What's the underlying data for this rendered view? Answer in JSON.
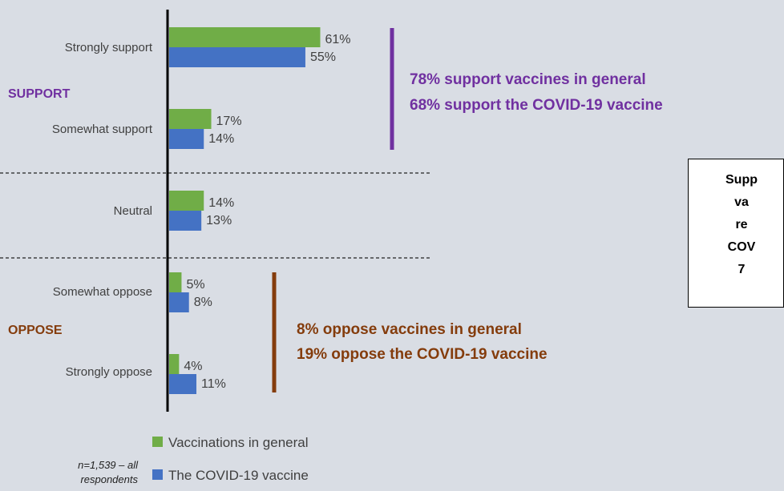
{
  "chart_data": {
    "type": "bar",
    "orientation": "horizontal",
    "categories": [
      "Strongly support",
      "Somewhat support",
      "Neutral",
      "Somewhat oppose",
      "Strongly oppose"
    ],
    "series": [
      {
        "name": "Vaccinations in general",
        "values": [
          61,
          17,
          14,
          5,
          4
        ],
        "color": "#70ad47"
      },
      {
        "name": "The COVID-19 vaccine",
        "values": [
          55,
          14,
          13,
          8,
          11
        ],
        "color": "#4472c4"
      }
    ],
    "value_suffix": "%",
    "xlim": [
      0,
      100
    ],
    "legend_position": "bottom"
  },
  "groups": {
    "support_label": "SUPPORT",
    "oppose_label": "OPPOSE",
    "support_color": "#7030a0",
    "oppose_color": "#843c0c"
  },
  "callouts": {
    "support_line1": "78% support vaccines in general",
    "support_line2": "68% support the COVID-19 vaccine",
    "oppose_line1": "8% oppose vaccines in general",
    "oppose_line2": "19% oppose the COVID-19 vaccine"
  },
  "info_box": {
    "line1": "Supp",
    "line2": "",
    "line3": "va",
    "line4": "re",
    "line5": "COV",
    "line6": "7"
  },
  "footnote": {
    "line1": "n=1,539 – all",
    "line2": "respondents"
  }
}
